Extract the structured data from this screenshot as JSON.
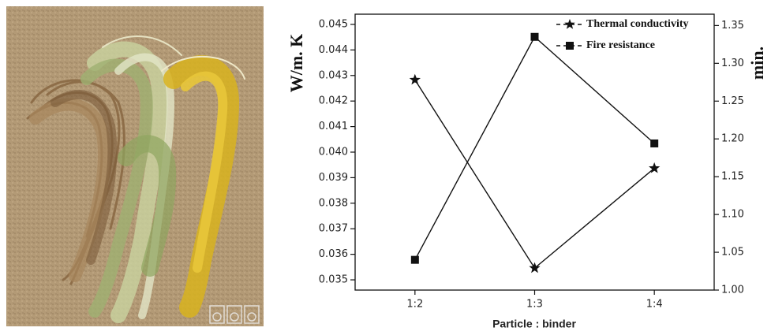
{
  "chart_data": {
    "type": "line",
    "x_label": "Particle : binder",
    "y_label": "W/m. K",
    "y2_label": "min.",
    "categories": [
      "1:2",
      "1:3",
      "1:4"
    ],
    "series": [
      {
        "name": "Thermal conductivity",
        "color": "#111111",
        "marker": "star",
        "values": [
          0.04283,
          0.03546,
          0.03937
        ]
      },
      {
        "name": "Fire resistance",
        "color": "#111111",
        "marker": "square",
        "axis": "y2",
        "values": [
          1.04,
          1.335,
          1.194
        ]
      }
    ],
    "ylim": [
      0.0346,
      0.0454
    ],
    "yticks": [
      0.035,
      0.036,
      0.037,
      0.038,
      0.039,
      {
        "value": 0.04,
        "label": "0.040"
      },
      0.041,
      0.042,
      0.043,
      0.044,
      0.045
    ],
    "y2lim": [
      1.0,
      1.365
    ],
    "y2ticks": [
      {
        "value": 1,
        "label": "1.00"
      },
      1.05,
      {
        "value": 1.1,
        "label": "1.10"
      },
      1.15,
      {
        "value": 1.2,
        "label": "1.20"
      },
      1.25,
      {
        "value": 1.3,
        "label": "1.30"
      },
      1.35
    ],
    "legend": "upper right"
  }
}
